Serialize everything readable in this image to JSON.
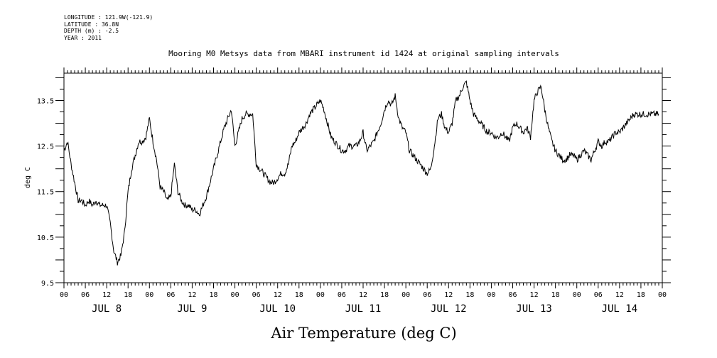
{
  "header": {
    "longitude": "LONGITUDE : 121.9W(-121.9)",
    "latitude": "LATITUDE : 36.8N",
    "depth": "DEPTH (m) : -2.5",
    "year": "YEAR : 2011"
  },
  "chart_data": {
    "type": "line",
    "title": "Mooring M0 Metsys data from MBARI instrument id 1424 at original sampling intervals",
    "xlabel": "Air Temperature (deg C)",
    "ylabel": "deg C",
    "ylim": [
      9.5,
      14.1
    ],
    "xlim": [
      0,
      168
    ],
    "y_ticks": [
      "9.5",
      "10.5",
      "11.5",
      "12.5",
      "13.5"
    ],
    "x_hour_ticks": [
      "00",
      "06",
      "12",
      "18",
      "00",
      "06",
      "12",
      "18",
      "00",
      "06",
      "12",
      "18",
      "00",
      "06",
      "12",
      "18",
      "00",
      "06",
      "12",
      "18",
      "00",
      "06",
      "12",
      "18",
      "00",
      "06",
      "12",
      "18",
      "00"
    ],
    "day_labels": [
      "JUL  8",
      "JUL  9",
      "JUL 10",
      "JUL 11",
      "JUL 12",
      "JUL 13",
      "JUL 14"
    ],
    "grid": false,
    "series": [
      {
        "color": "#000000",
        "x_unit": "hours from JUL 8 00:00",
        "x": [
          0,
          1,
          2,
          3,
          4,
          5,
          6,
          7,
          8,
          9,
          10,
          11,
          12,
          13,
          14,
          15,
          16,
          17,
          18,
          19,
          20,
          21,
          22,
          23,
          24,
          25,
          26,
          27,
          28,
          29,
          30,
          31,
          32,
          33,
          34,
          35,
          36,
          37,
          38,
          39,
          40,
          41,
          42,
          43,
          44,
          45,
          46,
          47,
          48,
          49,
          50,
          51,
          52,
          53,
          54,
          55,
          56,
          57,
          58,
          59,
          60,
          61,
          62,
          63,
          64,
          65,
          66,
          67,
          68,
          69,
          70,
          71,
          72,
          73,
          74,
          75,
          76,
          77,
          78,
          79,
          80,
          81,
          82,
          83,
          84,
          85,
          86,
          87,
          88,
          89,
          90,
          91,
          92,
          93,
          94,
          95,
          96,
          97,
          98,
          99,
          100,
          101,
          102,
          103,
          104,
          105,
          106,
          107,
          108,
          109,
          110,
          111,
          112,
          113,
          114,
          115,
          116,
          117,
          118,
          119,
          120,
          121,
          122,
          123,
          124,
          125,
          126,
          127,
          128,
          129,
          130,
          131,
          132,
          133,
          134,
          135,
          136,
          137,
          138,
          139,
          140,
          141,
          142,
          143,
          144,
          145,
          146,
          147,
          148,
          149,
          150,
          151,
          152,
          153,
          154,
          155,
          156,
          157,
          158,
          159,
          160,
          161,
          162,
          163,
          164,
          165,
          166,
          167
        ],
        "values": [
          12.4,
          12.6,
          12.1,
          11.7,
          11.3,
          11.3,
          11.2,
          11.3,
          11.2,
          11.3,
          11.2,
          11.2,
          11.2,
          10.8,
          10.2,
          9.95,
          10.1,
          10.6,
          11.5,
          12.0,
          12.3,
          12.6,
          12.6,
          12.7,
          13.1,
          12.6,
          12.2,
          11.6,
          11.5,
          11.3,
          11.4,
          12.1,
          11.5,
          11.3,
          11.2,
          11.2,
          11.1,
          11.1,
          11.0,
          11.2,
          11.4,
          11.7,
          12.0,
          12.3,
          12.6,
          12.9,
          13.1,
          13.3,
          12.5,
          12.8,
          13.1,
          13.2,
          13.2,
          13.2,
          12.1,
          12.0,
          11.9,
          11.8,
          11.7,
          11.7,
          11.8,
          11.9,
          11.9,
          12.1,
          12.5,
          12.6,
          12.8,
          12.9,
          13.0,
          13.2,
          13.3,
          13.4,
          13.5,
          13.3,
          13.0,
          12.7,
          12.6,
          12.5,
          12.4,
          12.4,
          12.5,
          12.5,
          12.5,
          12.6,
          12.8,
          12.4,
          12.5,
          12.6,
          12.8,
          13.0,
          13.3,
          13.5,
          13.4,
          13.6,
          13.1,
          12.9,
          12.8,
          12.4,
          12.3,
          12.2,
          12.1,
          12.0,
          11.9,
          12.0,
          12.5,
          13.1,
          13.2,
          12.9,
          12.8,
          13.0,
          13.5,
          13.6,
          13.8,
          13.9,
          13.5,
          13.2,
          13.1,
          13.0,
          12.9,
          12.8,
          12.8,
          12.7,
          12.7,
          12.8,
          12.7,
          12.6,
          12.9,
          13.0,
          12.9,
          12.8,
          12.9,
          12.7,
          13.5,
          13.7,
          13.8,
          13.3,
          12.9,
          12.6,
          12.4,
          12.3,
          12.2,
          12.2,
          12.3,
          12.3,
          12.2,
          12.3,
          12.4,
          12.3,
          12.2,
          12.4,
          12.6,
          12.5,
          12.6,
          12.6,
          12.7,
          12.8,
          12.8,
          12.9,
          13.0,
          13.1,
          13.2,
          13.2,
          13.2,
          13.2,
          13.2,
          13.2,
          13.2,
          13.2
        ]
      }
    ]
  }
}
